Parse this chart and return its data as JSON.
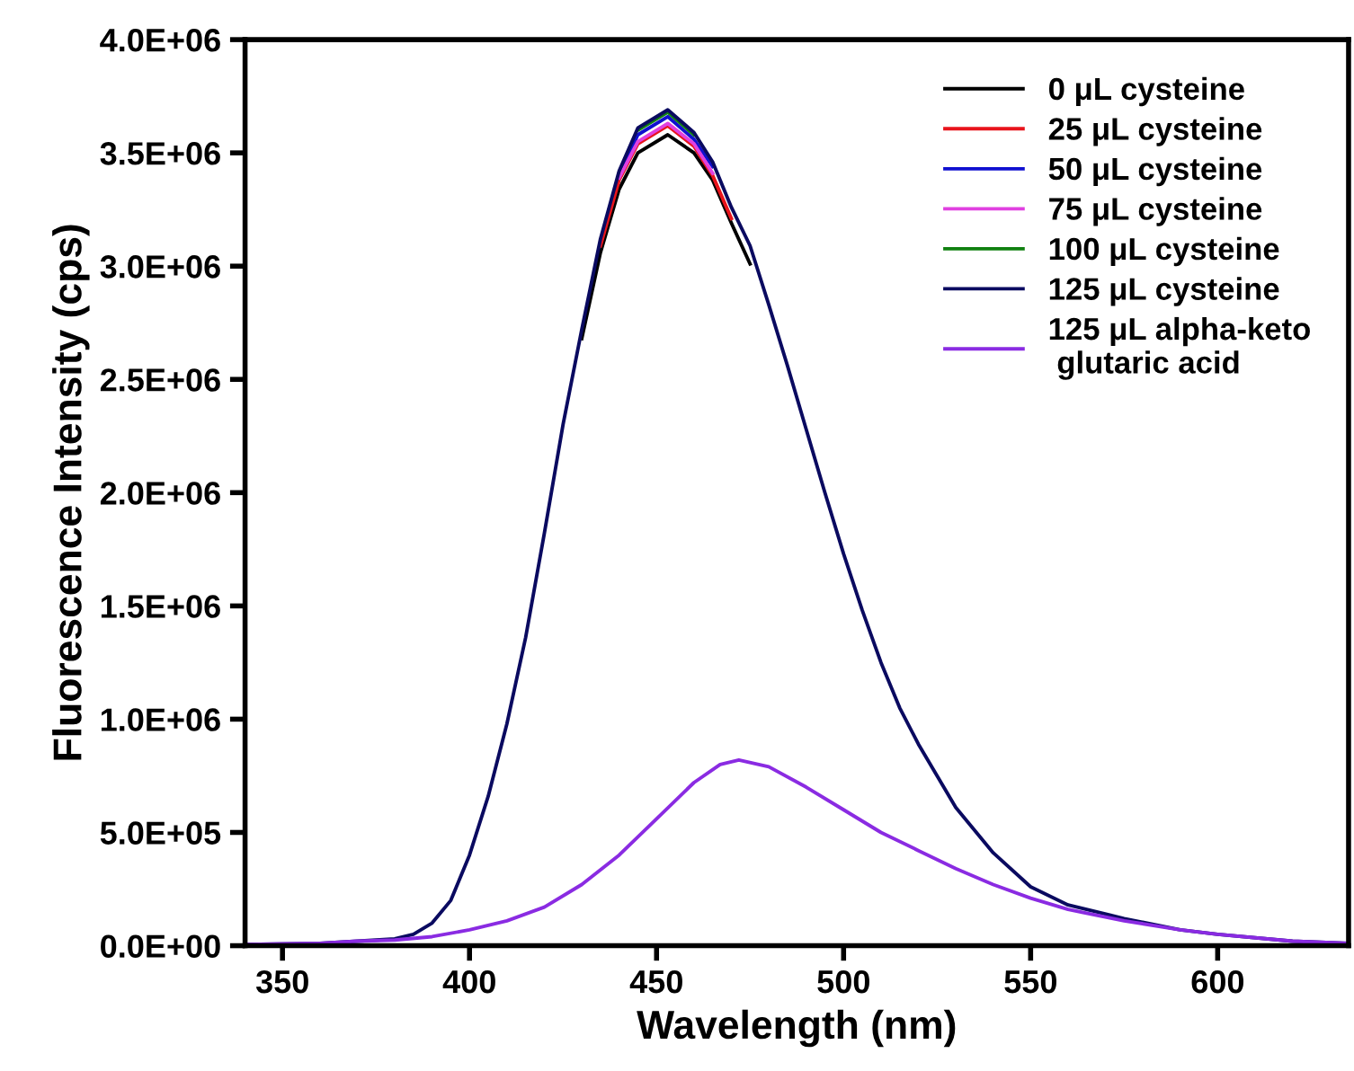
{
  "chart_data": {
    "type": "line",
    "xlabel": "Wavelength (nm)",
    "ylabel": "Fluorescence Intensity (cps)",
    "x": [
      340,
      360,
      370,
      380,
      385,
      390,
      395,
      400,
      405,
      410,
      415,
      420,
      425,
      430,
      435,
      440,
      445,
      453,
      460,
      465,
      470,
      475,
      480,
      485,
      490,
      495,
      500,
      505,
      510,
      515,
      520,
      525,
      530,
      540,
      550,
      560,
      575,
      590,
      600,
      620,
      635
    ],
    "series": [
      {
        "name": "0 μL cysteine",
        "color": "#000000",
        "values": [
          null,
          null,
          null,
          null,
          null,
          null,
          null,
          null,
          null,
          null,
          null,
          null,
          null,
          2680000.0,
          3060000.0,
          3340000.0,
          3500000.0,
          3580000.0,
          3500000.0,
          3380000.0,
          3190000.0,
          3010000.0,
          null,
          null,
          null,
          null,
          null,
          null,
          null,
          null,
          null,
          null,
          null,
          null,
          null,
          null,
          null,
          null,
          null,
          null,
          null
        ]
      },
      {
        "name": "25 μL cysteine",
        "color": "#e8141c",
        "values": [
          null,
          null,
          null,
          null,
          null,
          null,
          null,
          null,
          null,
          null,
          null,
          null,
          null,
          null,
          3090000.0,
          3380000.0,
          3540000.0,
          3620000.0,
          3530000.0,
          3400000.0,
          3210000.0,
          null,
          null,
          null,
          null,
          null,
          null,
          null,
          null,
          null,
          null,
          null,
          null,
          null,
          null,
          null,
          null,
          null,
          null,
          null,
          null
        ]
      },
      {
        "name": "50 μL cysteine",
        "color": "#1010d0",
        "values": [
          null,
          null,
          null,
          null,
          null,
          null,
          null,
          null,
          null,
          null,
          null,
          null,
          null,
          null,
          null,
          3400000.0,
          3580000.0,
          3660000.0,
          3560000.0,
          3440000.0,
          null,
          null,
          null,
          null,
          null,
          null,
          null,
          null,
          null,
          null,
          null,
          null,
          null,
          null,
          null,
          null,
          null,
          null,
          null,
          null,
          null
        ]
      },
      {
        "name": "75 μL cysteine",
        "color": "#e040e0",
        "values": [
          null,
          null,
          null,
          null,
          null,
          null,
          null,
          null,
          null,
          null,
          null,
          null,
          null,
          null,
          null,
          3390000.0,
          3550000.0,
          3630000.0,
          3540000.0,
          3410000.0,
          null,
          null,
          null,
          null,
          null,
          null,
          null,
          null,
          null,
          null,
          null,
          null,
          null,
          null,
          null,
          null,
          null,
          null,
          null,
          null,
          null
        ]
      },
      {
        "name": "100 μL cysteine",
        "color": "#108010",
        "values": [
          null,
          null,
          null,
          null,
          null,
          null,
          null,
          null,
          null,
          null,
          null,
          null,
          null,
          null,
          null,
          null,
          3600000.0,
          3680000.0,
          3580000.0,
          null,
          null,
          null,
          null,
          null,
          null,
          null,
          null,
          null,
          null,
          null,
          null,
          null,
          null,
          null,
          null,
          null,
          null,
          null,
          null,
          null,
          null
        ]
      },
      {
        "name": "125 μL cysteine",
        "color": "#0a0a60",
        "values": [
          5000.0,
          10000.0,
          20000.0,
          30000.0,
          50000.0,
          100000.0,
          200000.0,
          400000.0,
          660000.0,
          980000.0,
          1360000.0,
          1820000.0,
          2300000.0,
          2720000.0,
          3120000.0,
          3420000.0,
          3610000.0,
          3690000.0,
          3590000.0,
          3460000.0,
          3260000.0,
          3090000.0,
          2830000.0,
          2560000.0,
          2280000.0,
          2000000.0,
          1730000.0,
          1480000.0,
          1250000.0,
          1050000.0,
          890000.0,
          750000.0,
          610000.0,
          410000.0,
          260000.0,
          180000.0,
          120000.0,
          70000.0,
          50000.0,
          20000.0,
          10000.0
        ]
      },
      {
        "name": "125 μL alpha-keto\n glutaric acid",
        "color": "#8a2be2",
        "x": [
          340,
          360,
          370,
          380,
          390,
          400,
          410,
          420,
          430,
          440,
          450,
          460,
          467,
          472,
          480,
          490,
          500,
          510,
          520,
          530,
          540,
          550,
          560,
          575,
          590,
          600,
          620,
          635
        ],
        "values": [
          5000.0,
          10000.0,
          20000.0,
          25000.0,
          40000.0,
          70000.0,
          110000.0,
          170000.0,
          270000.0,
          400000.0,
          560000.0,
          720000.0,
          800000.0,
          820000.0,
          790000.0,
          700000.0,
          600000.0,
          500000.0,
          420000.0,
          340000.0,
          270000.0,
          210000.0,
          160000.0,
          110000.0,
          70000.0,
          50000.0,
          20000.0,
          10000.0
        ]
      }
    ],
    "xlim": [
      340,
      635
    ],
    "xticks": [
      350,
      400,
      450,
      500,
      550,
      600
    ],
    "ylim": [
      0,
      4000000
    ],
    "yticks": [
      {
        "value": 0,
        "label": "0.0E+00"
      },
      {
        "value": 500000,
        "label": "5.0E+05"
      },
      {
        "value": 1000000,
        "label": "1.0E+06"
      },
      {
        "value": 1500000,
        "label": "1.5E+06"
      },
      {
        "value": 2000000,
        "label": "2.0E+06"
      },
      {
        "value": 2500000,
        "label": "2.5E+06"
      },
      {
        "value": 3000000,
        "label": "3.0E+06"
      },
      {
        "value": 3500000,
        "label": "3.5E+06"
      },
      {
        "value": 4000000,
        "label": "4.0E+06"
      }
    ],
    "grid": false,
    "legend": "top right",
    "marker": "none",
    "line_style": "solid"
  }
}
